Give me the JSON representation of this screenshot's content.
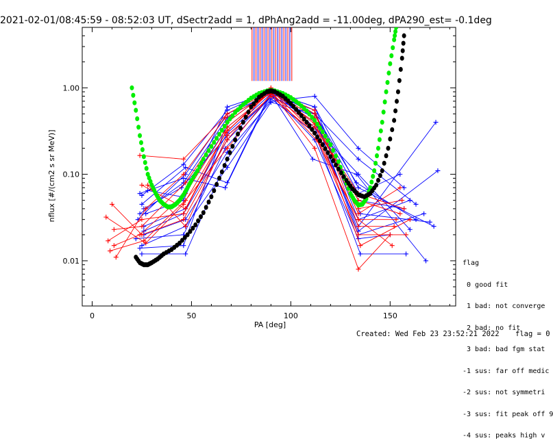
{
  "chart_data": {
    "type": "line",
    "title": "2021-02-01/08:45:59 - 08:52:03 UT, dSectr2add = 1, dPhAng2add = -11.00deg, dPA290_est=  -0.1deg",
    "xlabel": "PA [deg]",
    "ylabel": "nflux [#/(cm2 s sr MeV)]",
    "xlim": [
      -5,
      183
    ],
    "ylim": [
      0.003,
      5.0
    ],
    "yscale": "log",
    "x_ticks": [
      0,
      50,
      100,
      150
    ],
    "y_ticks": [
      {
        "value": 0.01,
        "label": "0.01"
      },
      {
        "value": 0.1,
        "label": "0.10"
      },
      {
        "value": 1.0,
        "label": "1.00"
      }
    ],
    "fits": [
      {
        "color": "#00ee00",
        "points": [
          [
            20,
            1.0
          ],
          [
            22,
            0.55
          ],
          [
            24,
            0.28
          ],
          [
            26,
            0.16
          ],
          [
            28,
            0.1
          ],
          [
            30,
            0.075
          ],
          [
            32,
            0.06
          ],
          [
            34,
            0.05
          ],
          [
            36,
            0.045
          ],
          [
            38,
            0.042
          ],
          [
            40,
            0.042
          ],
          [
            42,
            0.045
          ],
          [
            44,
            0.05
          ],
          [
            46,
            0.058
          ],
          [
            48,
            0.07
          ],
          [
            50,
            0.085
          ],
          [
            53,
            0.11
          ],
          [
            56,
            0.15
          ],
          [
            60,
            0.21
          ],
          [
            64,
            0.29
          ],
          [
            68,
            0.4
          ],
          [
            72,
            0.52
          ],
          [
            76,
            0.64
          ],
          [
            80,
            0.76
          ],
          [
            84,
            0.86
          ],
          [
            88,
            0.92
          ],
          [
            90,
            0.93
          ],
          [
            92,
            0.92
          ],
          [
            96,
            0.86
          ],
          [
            100,
            0.77
          ],
          [
            104,
            0.66
          ],
          [
            108,
            0.54
          ],
          [
            112,
            0.42
          ],
          [
            116,
            0.31
          ],
          [
            120,
            0.22
          ],
          [
            124,
            0.14
          ],
          [
            127,
            0.09
          ],
          [
            130,
            0.06
          ],
          [
            132,
            0.05
          ],
          [
            134,
            0.044
          ],
          [
            136,
            0.045
          ],
          [
            138,
            0.052
          ],
          [
            140,
            0.07
          ],
          [
            142,
            0.11
          ],
          [
            144,
            0.2
          ],
          [
            146,
            0.4
          ],
          [
            148,
            0.9
          ],
          [
            150,
            1.9
          ],
          [
            152,
            3.6
          ],
          [
            153,
            5.0
          ]
        ]
      },
      {
        "color": "#000000",
        "points": [
          [
            22,
            0.011
          ],
          [
            24,
            0.0095
          ],
          [
            26,
            0.009
          ],
          [
            28,
            0.009
          ],
          [
            30,
            0.0095
          ],
          [
            33,
            0.0105
          ],
          [
            36,
            0.012
          ],
          [
            40,
            0.0135
          ],
          [
            44,
            0.016
          ],
          [
            48,
            0.02
          ],
          [
            52,
            0.026
          ],
          [
            56,
            0.036
          ],
          [
            60,
            0.055
          ],
          [
            64,
            0.09
          ],
          [
            68,
            0.15
          ],
          [
            72,
            0.25
          ],
          [
            76,
            0.4
          ],
          [
            80,
            0.6
          ],
          [
            84,
            0.78
          ],
          [
            88,
            0.9
          ],
          [
            90,
            0.92
          ],
          [
            92,
            0.9
          ],
          [
            96,
            0.8
          ],
          [
            100,
            0.66
          ],
          [
            104,
            0.52
          ],
          [
            108,
            0.4
          ],
          [
            112,
            0.3
          ],
          [
            116,
            0.22
          ],
          [
            120,
            0.16
          ],
          [
            124,
            0.115
          ],
          [
            128,
            0.085
          ],
          [
            131,
            0.068
          ],
          [
            134,
            0.058
          ],
          [
            137,
            0.055
          ],
          [
            140,
            0.06
          ],
          [
            143,
            0.075
          ],
          [
            146,
            0.11
          ],
          [
            149,
            0.2
          ],
          [
            152,
            0.42
          ],
          [
            154,
            0.9
          ],
          [
            156,
            2.2
          ],
          [
            157,
            4.0
          ]
        ]
      }
    ],
    "spike_xs": [
      80,
      81,
      82,
      83,
      84,
      85,
      86,
      87,
      88,
      89,
      90,
      91,
      92,
      93,
      94,
      95,
      96,
      97,
      98,
      99,
      100
    ],
    "spike_colors": [
      "#ff0000",
      "#0000ff"
    ],
    "series": [
      {
        "color": "#0000ff",
        "points": [
          [
            25,
            0.057
          ],
          [
            46,
            0.13
          ],
          [
            68,
            0.55
          ],
          [
            90,
            0.92
          ],
          [
            112,
            0.5
          ],
          [
            134,
            0.06
          ],
          [
            155,
            0.1
          ]
        ]
      },
      {
        "color": "#0000ff",
        "points": [
          [
            24,
            0.035
          ],
          [
            46,
            0.08
          ],
          [
            68,
            0.45
          ],
          [
            90,
            0.9
          ],
          [
            112,
            0.4
          ],
          [
            134,
            0.05
          ],
          [
            157,
            0.04
          ]
        ]
      },
      {
        "color": "#0000ff",
        "points": [
          [
            26,
            0.025
          ],
          [
            47,
            0.04
          ],
          [
            68,
            0.3
          ],
          [
            90,
            0.85
          ],
          [
            112,
            0.55
          ],
          [
            134,
            0.03
          ],
          [
            160,
            0.05
          ]
        ]
      },
      {
        "color": "#0000ff",
        "points": [
          [
            22,
            0.018
          ],
          [
            46,
            0.02
          ],
          [
            67,
            0.2
          ],
          [
            90,
            0.8
          ],
          [
            112,
            0.45
          ],
          [
            134,
            0.02
          ],
          [
            167,
            0.035
          ]
        ]
      },
      {
        "color": "#0000ff",
        "points": [
          [
            24,
            0.014
          ],
          [
            46,
            0.015
          ],
          [
            68,
            0.4
          ],
          [
            90,
            0.95
          ],
          [
            112,
            0.35
          ],
          [
            134,
            0.025
          ],
          [
            173,
            0.4
          ]
        ]
      },
      {
        "color": "#0000ff",
        "points": [
          [
            27,
            0.035
          ],
          [
            46,
            0.05
          ],
          [
            68,
            0.6
          ],
          [
            91,
            0.9
          ],
          [
            112,
            0.5
          ],
          [
            133,
            0.08
          ],
          [
            163,
            0.03
          ]
        ]
      },
      {
        "color": "#0000ff",
        "points": [
          [
            28,
            0.065
          ],
          [
            45,
            0.055
          ],
          [
            68,
            0.35
          ],
          [
            90,
            0.9
          ],
          [
            112,
            0.6
          ],
          [
            135,
            0.035
          ],
          [
            170,
            0.028
          ]
        ]
      },
      {
        "color": "#0000ff",
        "points": [
          [
            25,
            0.012
          ],
          [
            47,
            0.012
          ],
          [
            68,
            0.15
          ],
          [
            90,
            0.75
          ],
          [
            112,
            0.3
          ],
          [
            135,
            0.012
          ],
          [
            158,
            0.012
          ]
        ]
      },
      {
        "color": "#0000ff",
        "points": [
          [
            23,
            0.03
          ],
          [
            47,
            0.1
          ],
          [
            68,
            0.5
          ],
          [
            90,
            0.85
          ],
          [
            111,
            0.15
          ],
          [
            133,
            0.1
          ],
          [
            168,
            0.01
          ]
        ]
      },
      {
        "color": "#0000ff",
        "points": [
          [
            26,
            0.04
          ],
          [
            45,
            0.07
          ],
          [
            68,
            0.28
          ],
          [
            91,
            0.8
          ],
          [
            112,
            0.25
          ],
          [
            134,
            0.018
          ],
          [
            150,
            0.02
          ]
        ]
      },
      {
        "color": "#0000ff",
        "points": [
          [
            26,
            0.02
          ],
          [
            47,
            0.03
          ],
          [
            68,
            0.18
          ],
          [
            90,
            0.7
          ],
          [
            112,
            0.8
          ],
          [
            134,
            0.2
          ],
          [
            157,
            0.07
          ]
        ]
      },
      {
        "color": "#0000ff",
        "points": [
          [
            25,
            0.015
          ],
          [
            47,
            0.025
          ],
          [
            68,
            0.12
          ],
          [
            90,
            0.68
          ],
          [
            112,
            0.5
          ],
          [
            134,
            0.15
          ],
          [
            163,
            0.045
          ]
        ]
      },
      {
        "color": "#0000ff",
        "points": [
          [
            25,
            0.045
          ],
          [
            47,
            0.12
          ],
          [
            68,
            0.08
          ],
          [
            90,
            0.9
          ],
          [
            112,
            0.6
          ],
          [
            134,
            0.07
          ],
          [
            172,
            0.025
          ]
        ]
      },
      {
        "color": "#0000ff",
        "points": [
          [
            24,
            0.06
          ],
          [
            46,
            0.09
          ],
          [
            67,
            0.07
          ],
          [
            90,
            0.85
          ],
          [
            112,
            0.35
          ],
          [
            134,
            0.1
          ],
          [
            160,
            0.023
          ]
        ]
      },
      {
        "color": "#0000ff",
        "points": [
          [
            26,
            0.022
          ],
          [
            46,
            0.035
          ],
          [
            68,
            0.25
          ],
          [
            90,
            0.8
          ],
          [
            112,
            0.45
          ],
          [
            134,
            0.022
          ],
          [
            174,
            0.11
          ]
        ]
      },
      {
        "color": "#ff0000",
        "points": [
          [
            8,
            0.017
          ],
          [
            25,
            0.03
          ],
          [
            46,
            0.035
          ],
          [
            67,
            0.3
          ],
          [
            90,
            0.95
          ],
          [
            112,
            0.45
          ],
          [
            134,
            0.035
          ],
          [
            155,
            0.07
          ]
        ]
      },
      {
        "color": "#ff0000",
        "points": [
          [
            10,
            0.045
          ],
          [
            25,
            0.02
          ],
          [
            46,
            0.03
          ],
          [
            68,
            0.25
          ],
          [
            90,
            1.0
          ],
          [
            112,
            0.5
          ],
          [
            134,
            0.04
          ],
          [
            156,
            0.05
          ]
        ]
      },
      {
        "color": "#ff0000",
        "points": [
          [
            11,
            0.023
          ],
          [
            25,
            0.025
          ],
          [
            47,
            0.08
          ],
          [
            68,
            0.4
          ],
          [
            90,
            0.95
          ],
          [
            112,
            0.3
          ],
          [
            134,
            0.03
          ],
          [
            153,
            0.03
          ]
        ]
      },
      {
        "color": "#ff0000",
        "points": [
          [
            11,
            0.015
          ],
          [
            24,
            0.02
          ],
          [
            47,
            0.06
          ],
          [
            68,
            0.35
          ],
          [
            90,
            0.9
          ],
          [
            112,
            0.2
          ],
          [
            134,
            0.008
          ],
          [
            150,
            0.02
          ]
        ]
      },
      {
        "color": "#ff0000",
        "points": [
          [
            12,
            0.011
          ],
          [
            27,
            0.04
          ],
          [
            46,
            0.1
          ],
          [
            67,
            0.45
          ],
          [
            91,
            0.88
          ],
          [
            112,
            0.4
          ],
          [
            135,
            0.015
          ],
          [
            160,
            0.03
          ]
        ]
      },
      {
        "color": "#ff0000",
        "points": [
          [
            9,
            0.013
          ],
          [
            26,
            0.017
          ],
          [
            47,
            0.05
          ],
          [
            68,
            0.2
          ],
          [
            90,
            0.85
          ],
          [
            112,
            0.35
          ],
          [
            134,
            0.06
          ],
          [
            157,
            0.04
          ]
        ]
      },
      {
        "color": "#ff0000",
        "points": [
          [
            24,
            0.165
          ],
          [
            46,
            0.15
          ],
          [
            68,
            0.5
          ],
          [
            90,
            0.92
          ],
          [
            112,
            0.55
          ],
          [
            134,
            0.025
          ],
          [
            152,
            0.025
          ]
        ]
      },
      {
        "color": "#ff0000",
        "points": [
          [
            25,
            0.075
          ],
          [
            47,
            0.04
          ],
          [
            67,
            0.3
          ],
          [
            90,
            0.97
          ],
          [
            112,
            0.38
          ],
          [
            134,
            0.05
          ],
          [
            155,
            0.035
          ]
        ]
      },
      {
        "color": "#ff0000",
        "points": [
          [
            28,
            0.075
          ],
          [
            47,
            0.025
          ],
          [
            68,
            0.28
          ],
          [
            90,
            0.8
          ],
          [
            112,
            0.3
          ],
          [
            134,
            0.02
          ],
          [
            158,
            0.02
          ]
        ]
      },
      {
        "color": "#ff0000",
        "points": [
          [
            7,
            0.032
          ],
          [
            27,
            0.016
          ],
          [
            46,
            0.045
          ],
          [
            68,
            0.32
          ],
          [
            90,
            0.9
          ],
          [
            113,
            0.25
          ],
          [
            134,
            0.03
          ],
          [
            151,
            0.015
          ]
        ]
      }
    ]
  },
  "legend": {
    "title": "flag",
    "items": [
      " 0 good fit",
      " 1 bad: not converge",
      " 2 bad: no fit",
      " 3 bad: bad fgm stat",
      "-1 sus: far off medic",
      "-2 sus: not symmetri",
      "-3 sus: fit peak off 9",
      "-4 sus: peaks high v"
    ]
  },
  "footer": {
    "created": "Created: Wed Feb 23 23:52:21 2022",
    "flag": "flag = 0"
  }
}
